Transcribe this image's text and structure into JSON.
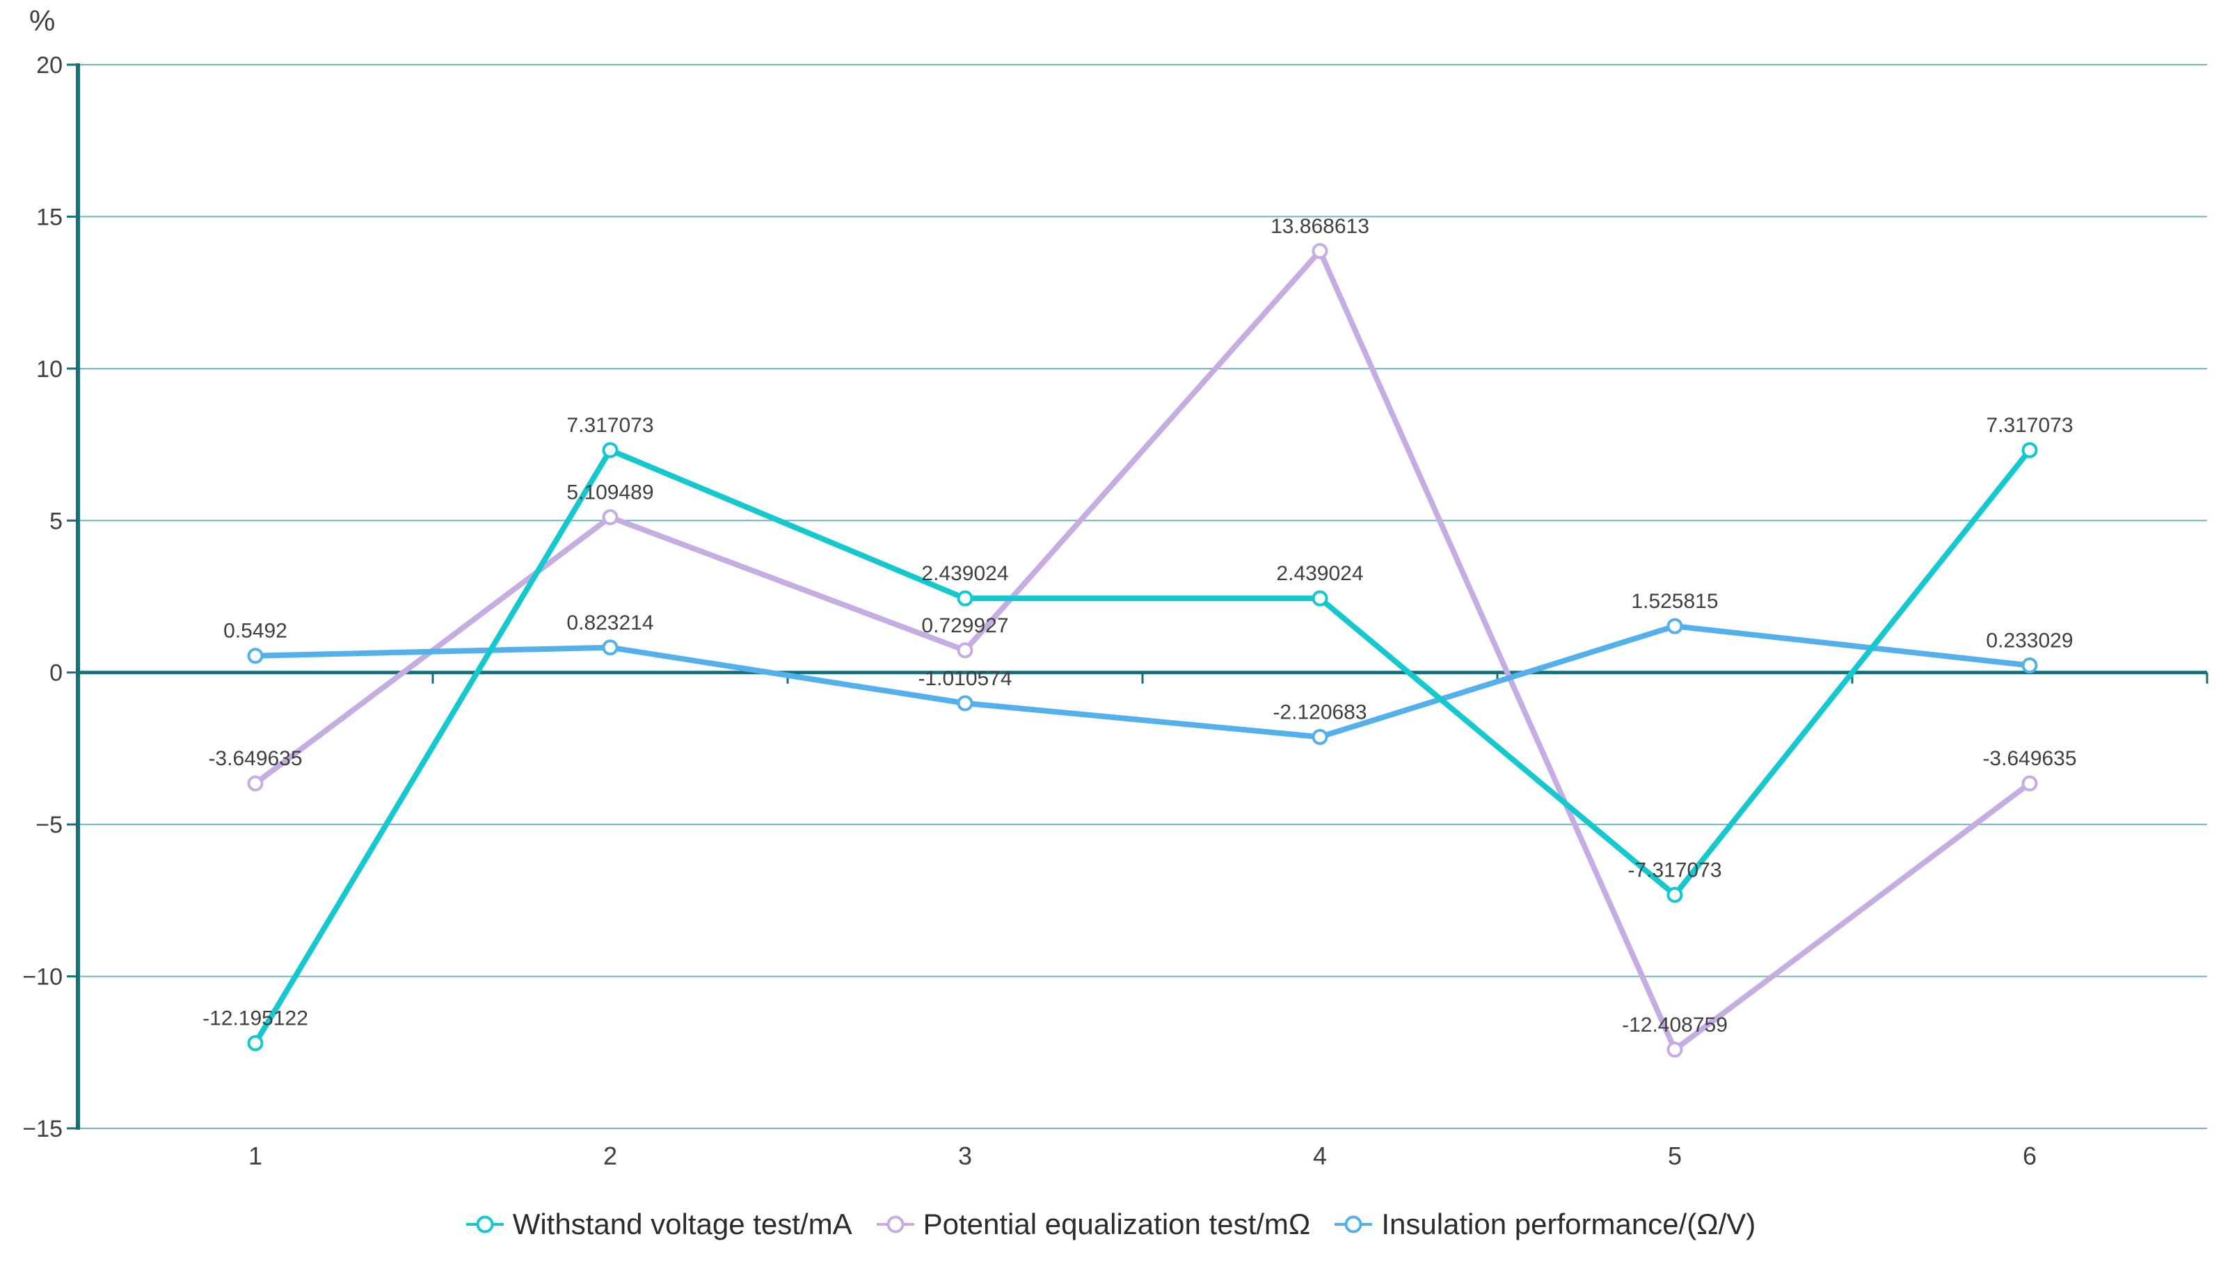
{
  "chart_data": {
    "type": "line",
    "title": "",
    "ylabel": "%",
    "xlabel": "",
    "categories": [
      "1",
      "2",
      "3",
      "4",
      "5",
      "6"
    ],
    "ylim": [
      -15,
      20
    ],
    "grid": true,
    "legend_position": "bottom",
    "yticks": [
      {
        "value": 20,
        "label": "20"
      },
      {
        "value": 15,
        "label": "15"
      },
      {
        "value": 10,
        "label": "10"
      },
      {
        "value": 5,
        "label": "5"
      },
      {
        "value": 0,
        "label": "0"
      },
      {
        "value": -5,
        "label": "−5"
      },
      {
        "value": -10,
        "label": "−10"
      },
      {
        "value": -15,
        "label": "−15"
      }
    ],
    "series": [
      {
        "name": "Withstand voltage test/mA",
        "color": "#13c8ce",
        "values": [
          -12.195122,
          7.317073,
          2.439024,
          2.439024,
          -7.317073,
          7.317073
        ],
        "labels": [
          "-12.195122",
          "7.317073",
          "2.439024",
          "2.439024",
          "-7.317073",
          "7.317073"
        ]
      },
      {
        "name": "Potential equalization test/mΩ",
        "color": "#c5ade4",
        "values": [
          -3.649635,
          5.109489,
          0.729927,
          13.868613,
          -12.408759,
          -3.649635
        ],
        "labels": [
          "-3.649635",
          "5.109489",
          "0.729927",
          "13.868613",
          "-12.408759",
          "-3.649635"
        ]
      },
      {
        "name": "Insulation performance/(Ω/V)",
        "color": "#54b0ea",
        "values": [
          0.5492,
          0.823214,
          -1.010574,
          -2.120683,
          1.525815,
          0.233029
        ],
        "labels": [
          "0.5492",
          "0.823214",
          "-1.010574",
          "-2.120683",
          "1.525815",
          "0.233029"
        ]
      }
    ],
    "colors": {
      "axis": "#176f7a",
      "gridline": "#6fb5bb",
      "tick_label_text": "#3f3f3f",
      "data_label_text": "#3f3f3f",
      "legend_text": "#2b2b2b",
      "marker_fill": "#ffffff"
    }
  }
}
